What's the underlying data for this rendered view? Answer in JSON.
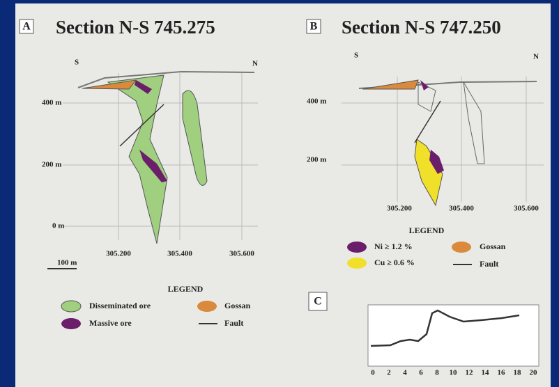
{
  "panel_a": {
    "letter": "A",
    "title": "Section N-S 745.275",
    "south": "S",
    "north": "N",
    "elevations": [
      "400 m",
      "200 m",
      "0 m"
    ],
    "eastings": [
      "305.200",
      "305.400",
      "305.600"
    ],
    "scale": "100 m",
    "legend": {
      "title": "LEGEND",
      "items": [
        "Disseminated ore",
        "Gossan",
        "Massive ore",
        "Fault"
      ]
    }
  },
  "panel_b": {
    "letter": "B",
    "title": "Section N-S 747.250",
    "south": "S",
    "north": "N",
    "elevations": [
      "400 m",
      "200 m"
    ],
    "eastings": [
      "305.200",
      "305.400",
      "305.600"
    ],
    "legend": {
      "title": "LEGEND",
      "items": [
        "Ni ≥ 1.2 %",
        "Gossan",
        "Cu ≥ 0.6 %",
        "Fault"
      ]
    }
  },
  "panel_c": {
    "letter": "C",
    "x_ticks": [
      "0",
      "2",
      "4",
      "6",
      "8",
      "10",
      "12",
      "14",
      "16",
      "18",
      "20"
    ]
  }
}
